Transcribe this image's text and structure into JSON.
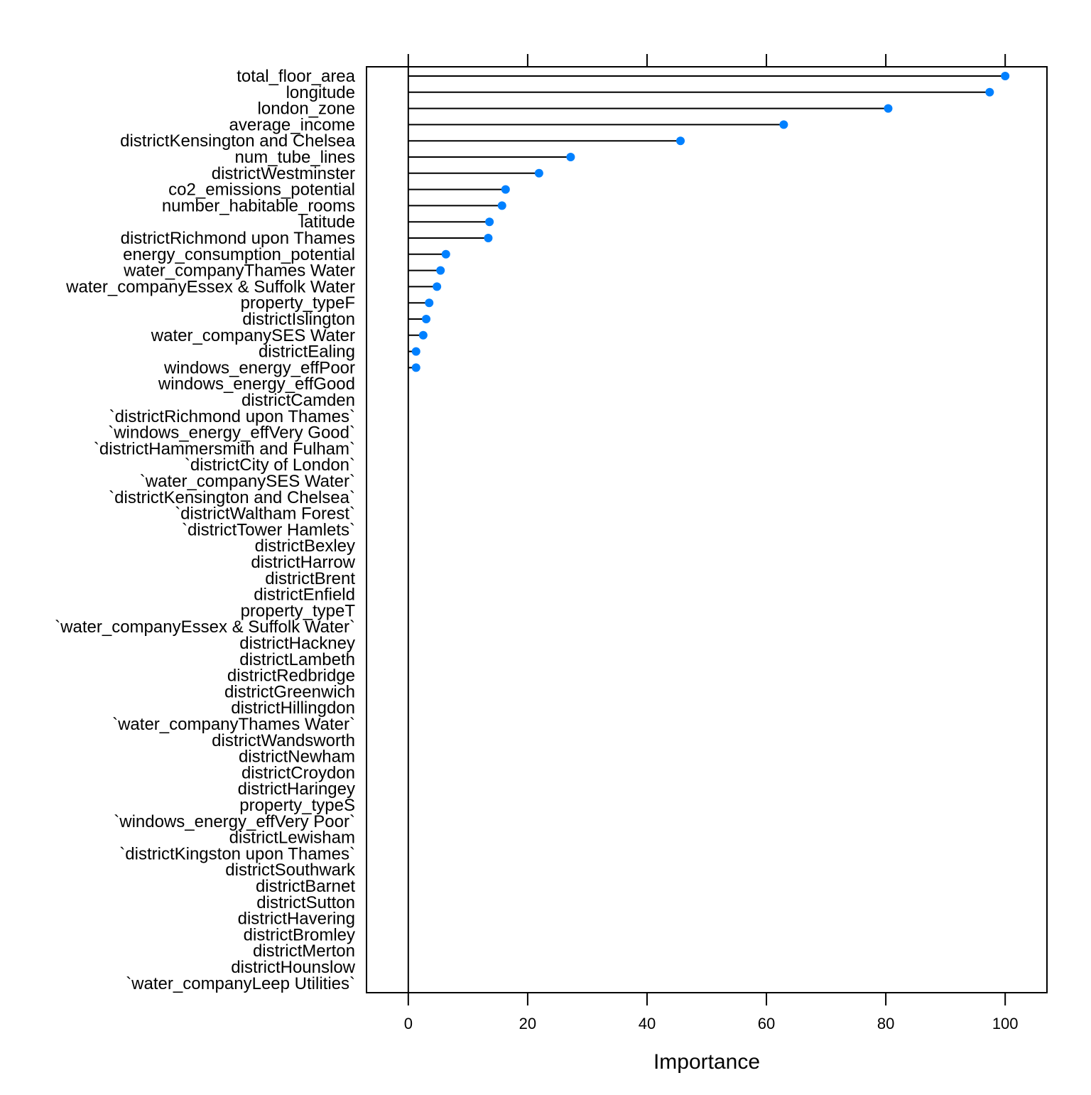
{
  "chart_data": {
    "type": "lollipop",
    "title": "",
    "xlabel": "Importance",
    "ylabel": "",
    "xlim": [
      -7,
      107
    ],
    "xticks": [
      0,
      20,
      40,
      60,
      80,
      100
    ],
    "grid": false,
    "legend": "none",
    "colors": {
      "point": "#0080ff",
      "stem": "#000000",
      "frame": "#000000"
    },
    "categories": [
      "total_floor_area",
      "longitude",
      "london_zone",
      "average_income",
      "districtKensington and Chelsea",
      "num_tube_lines",
      "districtWestminster",
      "co2_emissions_potential",
      "number_habitable_rooms",
      "latitude",
      "districtRichmond upon Thames",
      "energy_consumption_potential",
      "water_companyThames Water",
      "water_companyEssex & Suffolk Water",
      "property_typeF",
      "districtIslington",
      "water_companySES Water",
      "districtEaling",
      "windows_energy_effPoor",
      "windows_energy_effGood",
      "districtCamden",
      "`districtRichmond upon Thames`",
      "`windows_energy_effVery Good`",
      "`districtHammersmith and Fulham`",
      "`districtCity of London`",
      "`water_companySES Water`",
      "`districtKensington and Chelsea`",
      "`districtWaltham Forest`",
      "`districtTower Hamlets`",
      "districtBexley",
      "districtHarrow",
      "districtBrent",
      "districtEnfield",
      "property_typeT",
      "`water_companyEssex & Suffolk Water`",
      "districtHackney",
      "districtLambeth",
      "districtRedbridge",
      "districtGreenwich",
      "districtHillingdon",
      "`water_companyThames Water`",
      "districtWandsworth",
      "districtNewham",
      "districtCroydon",
      "districtHaringey",
      "property_typeS",
      "`windows_energy_effVery Poor`",
      "districtLewisham",
      "`districtKingston upon Thames`",
      "districtSouthwark",
      "districtBarnet",
      "districtSutton",
      "districtHavering",
      "districtBromley",
      "districtMerton",
      "districtHounslow",
      "`water_companyLeep Utilities`"
    ],
    "values": [
      100,
      97.4,
      80.4,
      62.9,
      45.6,
      27.2,
      21.9,
      16.3,
      15.7,
      13.6,
      13.4,
      6.3,
      5.4,
      4.8,
      3.5,
      3.0,
      2.5,
      1.3,
      1.3,
      null,
      null,
      null,
      null,
      null,
      null,
      null,
      null,
      null,
      null,
      null,
      null,
      null,
      null,
      null,
      null,
      null,
      null,
      null,
      null,
      null,
      null,
      null,
      null,
      null,
      null,
      null,
      null,
      null,
      null,
      null,
      null,
      null,
      null,
      null,
      null,
      null,
      null
    ]
  }
}
